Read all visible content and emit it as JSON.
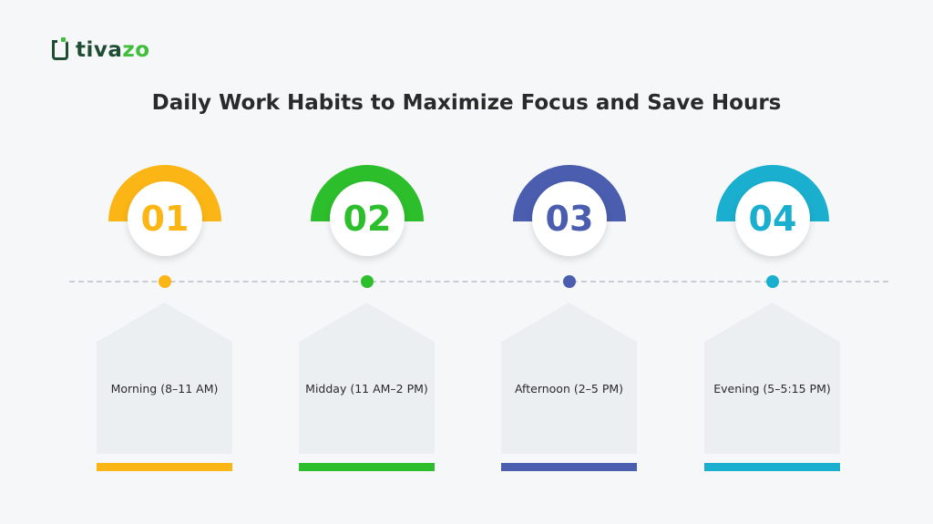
{
  "logo": {
    "text_a": "tiva",
    "text_b": "zo"
  },
  "title": "Daily Work Habits to Maximize Focus and Save Hours",
  "steps": [
    {
      "number": "01",
      "label": "Morning (8–11 AM)",
      "color": "#FBB615"
    },
    {
      "number": "02",
      "label": "Midday (11 AM–2 PM)",
      "color": "#2DBE2C"
    },
    {
      "number": "03",
      "label": "Afternoon (2–5 PM)",
      "color": "#4A5DAE"
    },
    {
      "number": "04",
      "label": "Evening (5–5:15 PM)",
      "color": "#1AAFCF"
    }
  ]
}
